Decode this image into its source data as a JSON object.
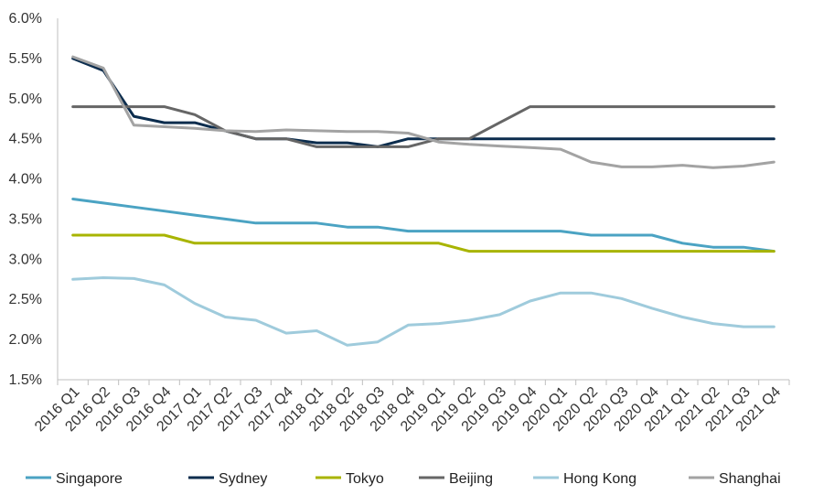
{
  "chart_data": {
    "type": "line",
    "title": "",
    "xlabel": "",
    "ylabel": "",
    "ylim": [
      1.5,
      6.0
    ],
    "y_ticks": [
      "1.5%",
      "2.0%",
      "2.5%",
      "3.0%",
      "3.5%",
      "4.0%",
      "4.5%",
      "5.0%",
      "5.5%",
      "6.0%"
    ],
    "y_tick_values": [
      1.5,
      2.0,
      2.5,
      3.0,
      3.5,
      4.0,
      4.5,
      5.0,
      5.5,
      6.0
    ],
    "grid": false,
    "legend_position": "bottom",
    "categories": [
      "2016 Q1",
      "2016 Q2",
      "2016 Q3",
      "2016 Q4",
      "2017 Q1",
      "2017 Q2",
      "2017 Q3",
      "2017 Q4",
      "2018 Q1",
      "2018 Q2",
      "2018 Q3",
      "2018 Q4",
      "2019 Q1",
      "2019 Q2",
      "2019 Q3",
      "2019 Q4",
      "2020 Q1",
      "2020 Q2",
      "2020 Q3",
      "2020 Q4",
      "2021 Q1",
      "2021 Q2",
      "2021 Q3",
      "2021 Q4"
    ],
    "series": [
      {
        "name": "Singapore",
        "color": "#4ba3c3",
        "values": [
          3.75,
          3.7,
          3.65,
          3.6,
          3.55,
          3.5,
          3.45,
          3.45,
          3.45,
          3.4,
          3.4,
          3.35,
          3.35,
          3.35,
          3.35,
          3.35,
          3.35,
          3.3,
          3.3,
          3.3,
          3.2,
          3.15,
          3.15,
          3.1
        ]
      },
      {
        "name": "Sydney",
        "color": "#0c2d4e",
        "values": [
          5.5,
          5.35,
          4.78,
          4.7,
          4.7,
          4.6,
          4.5,
          4.5,
          4.45,
          4.45,
          4.4,
          4.5,
          4.5,
          4.5,
          4.5,
          4.5,
          4.5,
          4.5,
          4.5,
          4.5,
          4.5,
          4.5,
          4.5,
          4.5
        ]
      },
      {
        "name": "Tokyo",
        "color": "#a8b400",
        "values": [
          3.3,
          3.3,
          3.3,
          3.3,
          3.2,
          3.2,
          3.2,
          3.2,
          3.2,
          3.2,
          3.2,
          3.2,
          3.2,
          3.1,
          3.1,
          3.1,
          3.1,
          3.1,
          3.1,
          3.1,
          3.1,
          3.1,
          3.1,
          3.1
        ]
      },
      {
        "name": "Beijing",
        "color": "#666666",
        "values": [
          4.9,
          4.9,
          4.9,
          4.9,
          4.8,
          4.6,
          4.5,
          4.5,
          4.4,
          4.4,
          4.4,
          4.4,
          4.5,
          4.5,
          4.7,
          4.9,
          4.9,
          4.9,
          4.9,
          4.9,
          4.9,
          4.9,
          4.9,
          4.9
        ]
      },
      {
        "name": "Hong Kong",
        "color": "#9fcbdc",
        "values": [
          2.75,
          2.77,
          2.76,
          2.68,
          2.45,
          2.28,
          2.24,
          2.08,
          2.11,
          1.93,
          1.97,
          2.18,
          2.2,
          2.24,
          2.31,
          2.48,
          2.58,
          2.58,
          2.51,
          2.39,
          2.28,
          2.2,
          2.16,
          2.16
        ]
      },
      {
        "name": "Shanghai",
        "color": "#a3a3a3",
        "values": [
          5.52,
          5.38,
          4.67,
          4.65,
          4.63,
          4.6,
          4.59,
          4.61,
          4.6,
          4.59,
          4.59,
          4.57,
          4.46,
          4.43,
          4.41,
          4.39,
          4.37,
          4.21,
          4.15,
          4.15,
          4.17,
          4.14,
          4.16,
          4.21
        ]
      }
    ]
  }
}
